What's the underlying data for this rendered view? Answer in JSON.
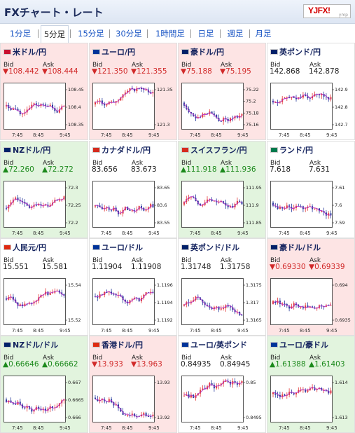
{
  "header": {
    "title": "FXチャート・レート",
    "logo_text": "YJFX!",
    "logo_sub": "ymp"
  },
  "tabs": [
    {
      "label": "1分足",
      "active": false
    },
    {
      "label": "5分足",
      "active": true
    },
    {
      "label": "15分足",
      "active": false
    },
    {
      "label": "30分足",
      "active": false
    },
    {
      "label": "1時間足",
      "active": false
    },
    {
      "label": "日足",
      "active": false
    },
    {
      "label": "週足",
      "active": false
    },
    {
      "label": "月足",
      "active": false
    }
  ],
  "labels": {
    "bid": "Bid",
    "ask": "Ask"
  },
  "time_labels": [
    "7:45",
    "8:45",
    "9:45"
  ],
  "pairs": [
    {
      "name": "米ドル/円",
      "status": "down",
      "flag": "#c8102e",
      "bid": "▼108.442",
      "ask": "▼108.444",
      "ticks": [
        "108.45",
        "108.4",
        "108.35"
      ],
      "seed": 1
    },
    {
      "name": "ユーロ/円",
      "status": "down",
      "flag": "#003399",
      "bid": "▼121.350",
      "ask": "▼121.355",
      "ticks": [
        "121.35",
        "121.3"
      ],
      "seed": 2
    },
    {
      "name": "豪ドル/円",
      "status": "down",
      "flag": "#012169",
      "bid": "▼75.188",
      "ask": "▼75.195",
      "ticks": [
        "75.22",
        "75.2",
        "75.18",
        "75.16"
      ],
      "seed": 3
    },
    {
      "name": "英ポンド/円",
      "status": "none",
      "flag": "#012169",
      "bid": "142.868",
      "ask": "142.878",
      "ticks": [
        "142.9",
        "142.8",
        "142.7"
      ],
      "seed": 4
    },
    {
      "name": "NZドル/円",
      "status": "up",
      "flag": "#012169",
      "bid": "▲72.260",
      "ask": "▲72.272",
      "ticks": [
        "72.3",
        "72.25",
        "72.2"
      ],
      "seed": 5
    },
    {
      "name": "カナダドル/円",
      "status": "none",
      "flag": "#d52b1e",
      "bid": "83.656",
      "ask": "83.673",
      "ticks": [
        "83.65",
        "83.6",
        "83.55"
      ],
      "seed": 6
    },
    {
      "name": "スイスフラン/円",
      "status": "up",
      "flag": "#d52b1e",
      "bid": "▲111.918",
      "ask": "▲111.936",
      "ticks": [
        "111.95",
        "111.9",
        "111.85"
      ],
      "seed": 7
    },
    {
      "name": "ランド/円",
      "status": "none",
      "flag": "#007a4d",
      "bid": "7.618",
      "ask": "7.631",
      "ticks": [
        "7.61",
        "7.6",
        "7.59"
      ],
      "seed": 8
    },
    {
      "name": "人民元/円",
      "status": "none",
      "flag": "#de2910",
      "bid": "15.551",
      "ask": "15.581",
      "ticks": [
        "15.54",
        "15.52"
      ],
      "seed": 9
    },
    {
      "name": "ユーロ/ドル",
      "status": "none",
      "flag": "#003399",
      "bid": "1.11904",
      "ask": "1.11908",
      "ticks": [
        "1.1196",
        "1.1194",
        "1.1192"
      ],
      "seed": 10
    },
    {
      "name": "英ポンド/ドル",
      "status": "none",
      "flag": "#012169",
      "bid": "1.31748",
      "ask": "1.31758",
      "ticks": [
        "1.3175",
        "1.317",
        "1.3165"
      ],
      "seed": 11
    },
    {
      "name": "豪ドル/ドル",
      "status": "down",
      "flag": "#012169",
      "bid": "▼0.69330",
      "ask": "▼0.69339",
      "ticks": [
        "0.694",
        "0.6935"
      ],
      "seed": 12
    },
    {
      "name": "NZドル/ドル",
      "status": "up",
      "flag": "#012169",
      "bid": "▲0.66646",
      "ask": "▲0.66662",
      "ticks": [
        "0.667",
        "0.6665",
        "0.666"
      ],
      "seed": 13
    },
    {
      "name": "香港ドル/円",
      "status": "down",
      "flag": "#de2910",
      "bid": "▼13.933",
      "ask": "▼13.963",
      "ticks": [
        "13.93",
        "13.92"
      ],
      "seed": 14
    },
    {
      "name": "ユーロ/英ポンド",
      "status": "none",
      "flag": "#003399",
      "bid": "0.84935",
      "ask": "0.84945",
      "ticks": [
        "0.85",
        "0.8495"
      ],
      "seed": 15
    },
    {
      "name": "ユーロ/豪ドル",
      "status": "up",
      "flag": "#003399",
      "bid": "▲1.61388",
      "ask": "▲1.61403",
      "ticks": [
        "1.614",
        "1.613"
      ],
      "seed": 16
    }
  ]
}
